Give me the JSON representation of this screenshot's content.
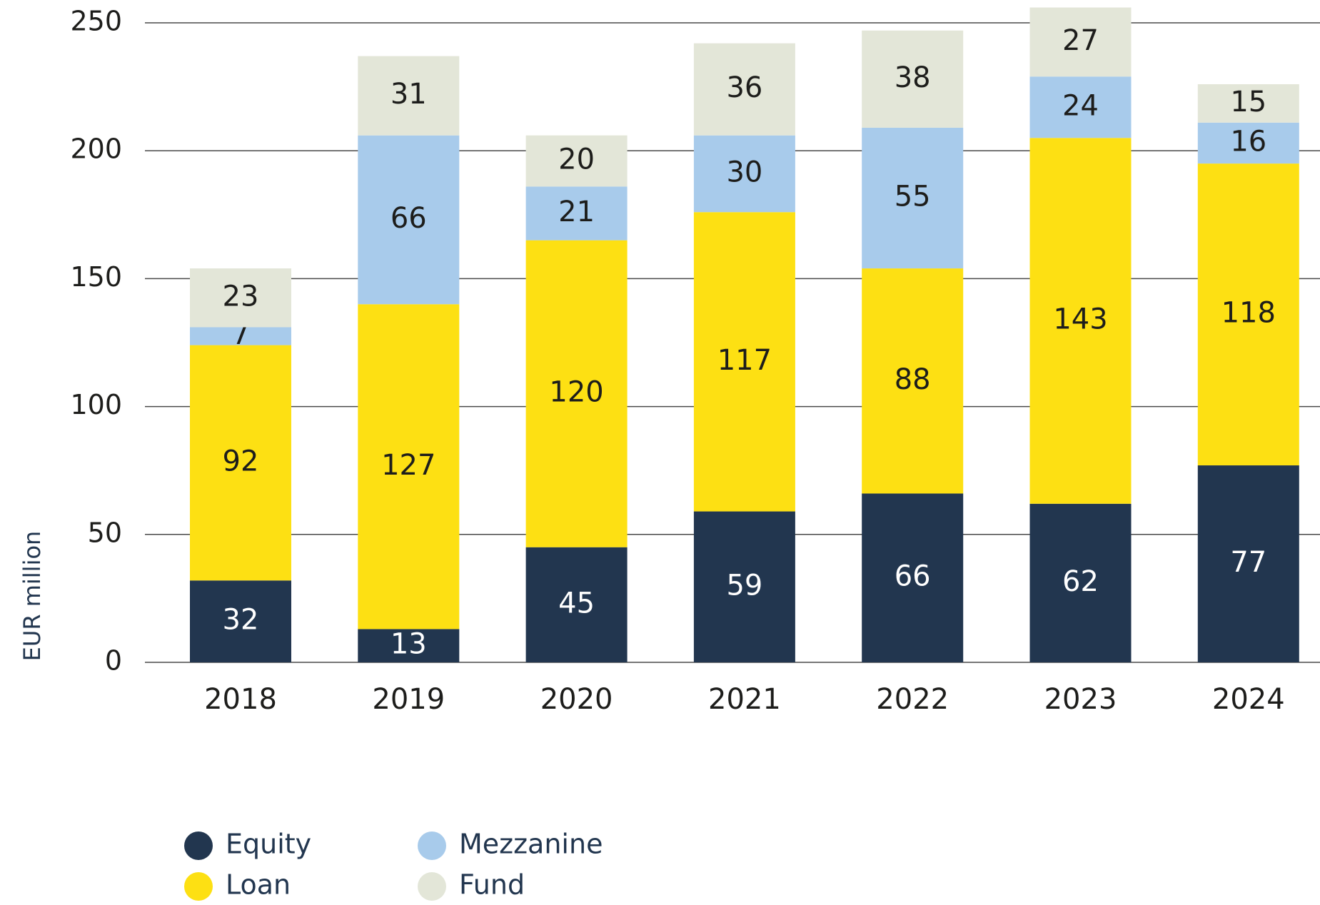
{
  "chart_data": {
    "type": "stacked_bar",
    "y_axis_label": "EUR million",
    "categories": [
      "2018",
      "2019",
      "2020",
      "2021",
      "2022",
      "2023",
      "2024"
    ],
    "series": [
      {
        "name": "Equity",
        "color": "#22364f",
        "values": [
          32,
          13,
          45,
          59,
          66,
          62,
          77
        ]
      },
      {
        "name": "Loan",
        "color": "#fde013",
        "values": [
          92,
          127,
          120,
          117,
          88,
          143,
          118
        ]
      },
      {
        "name": "Mezzanine",
        "color": "#a8cbeb",
        "values": [
          7,
          66,
          21,
          30,
          55,
          24,
          16
        ]
      },
      {
        "name": "Fund",
        "color": "#e3e6d8",
        "values": [
          23,
          31,
          20,
          36,
          38,
          27,
          15
        ]
      }
    ],
    "ylim": [
      0,
      250
    ],
    "yticks": [
      0,
      50,
      100,
      150,
      200,
      250
    ],
    "grid": true
  }
}
